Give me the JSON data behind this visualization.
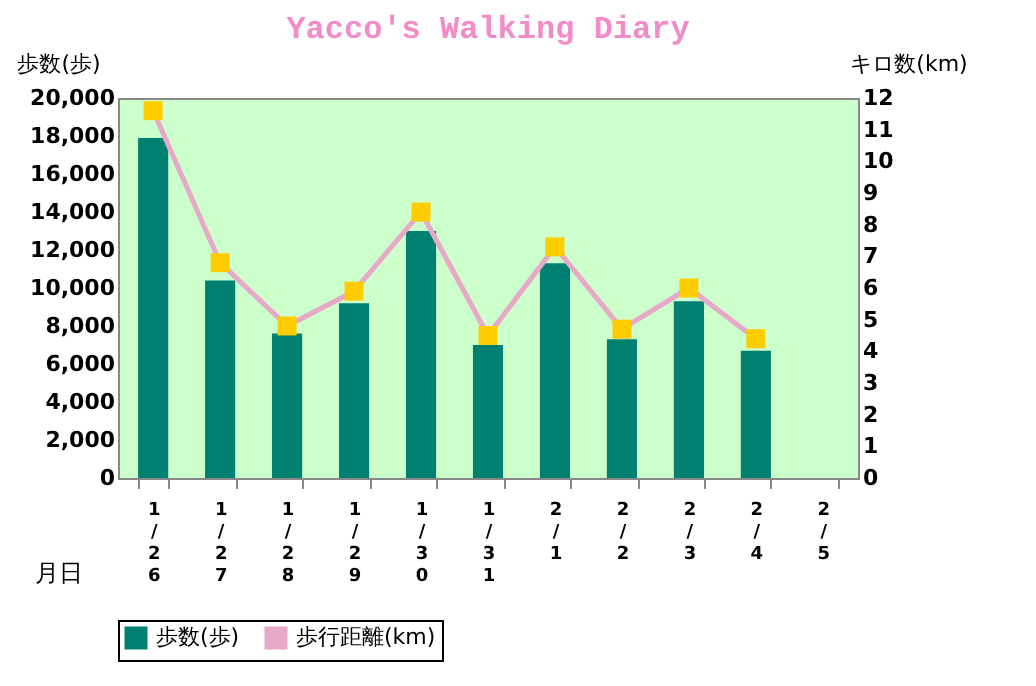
{
  "chart_data": {
    "type": "bar",
    "title": "Yacco's Walking Diary",
    "xlabel": "月日",
    "ylabel": "歩数(歩)",
    "y2label": "キロ数(km)",
    "categories": [
      "1/26",
      "1/27",
      "1/28",
      "1/29",
      "1/30",
      "1/31",
      "2/1",
      "2/2",
      "2/3",
      "2/4",
      "2/5"
    ],
    "series": [
      {
        "name": "歩数(歩)",
        "color": "#008070",
        "values": [
          17900,
          10400,
          7600,
          9200,
          13000,
          7000,
          11300,
          7300,
          9300,
          6700,
          null
        ]
      },
      {
        "name": "歩行距離(km)",
        "type": "line",
        "axis": "y2",
        "color": "#e8a8c8",
        "marker": "square",
        "colors": [
          "#ffcc00",
          "#ffcc00",
          "#ffcc00",
          "#ffcc00",
          "#ffcc00",
          "#ffcc00",
          "#ffcc00",
          "#ffcc00",
          "#ffcc00",
          "#ffcc00",
          "#ffcc00"
        ],
        "values": [
          11.6,
          6.8,
          4.8,
          5.9,
          8.4,
          4.5,
          7.3,
          4.7,
          6.0,
          4.4,
          null
        ]
      }
    ],
    "ylim": [
      0,
      20000
    ],
    "yticks": [
      0,
      {
        "value": 2000,
        "label": "2,000"
      },
      {
        "value": 4000,
        "label": "4,000"
      },
      {
        "value": 6000,
        "label": "6,000"
      },
      {
        "value": 8000,
        "label": "8,000"
      },
      {
        "value": 10000,
        "label": "10,000"
      },
      {
        "value": 12000,
        "label": "12,000"
      },
      {
        "value": 14000,
        "label": "14,000"
      },
      {
        "value": 16000,
        "label": "16,000"
      },
      {
        "value": 18000,
        "label": "18,000"
      },
      {
        "value": 20000,
        "label": "20,000"
      }
    ],
    "y2lim": [
      0,
      12
    ],
    "y2ticks": [
      0,
      1,
      2,
      3,
      4,
      5,
      6,
      7,
      8,
      9,
      10,
      11,
      12
    ],
    "grid": false,
    "legend": "bottom"
  }
}
